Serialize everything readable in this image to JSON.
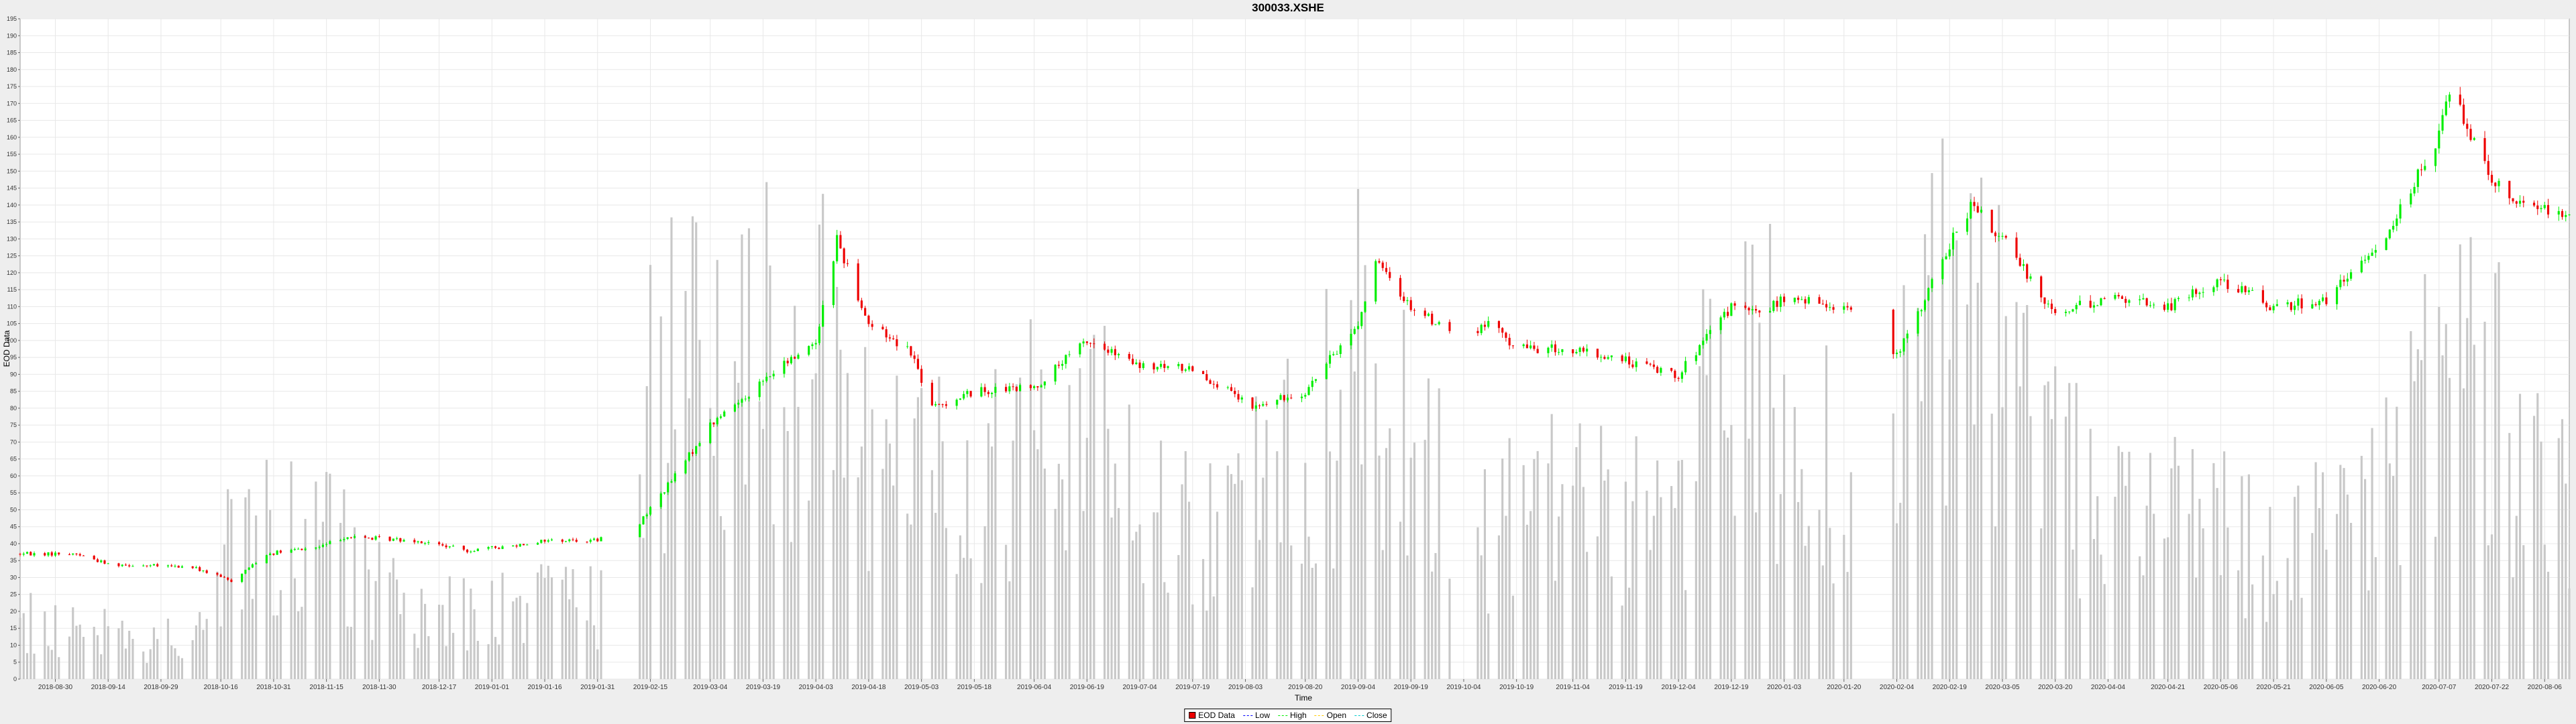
{
  "chart_data": {
    "type": "candlestick",
    "title": "300033.XSHE",
    "xlabel": "Time",
    "ylabel": "EOD Data",
    "ylim": [
      0,
      195
    ],
    "y_ticks": [
      0,
      5,
      10,
      15,
      20,
      25,
      30,
      35,
      40,
      45,
      50,
      55,
      60,
      65,
      70,
      75,
      80,
      85,
      90,
      95,
      100,
      105,
      110,
      115,
      120,
      125,
      130,
      135,
      140,
      145,
      150,
      155,
      160,
      165,
      170,
      175,
      180,
      185,
      190,
      195
    ],
    "x_range": [
      "2018-08-20",
      "2020-08-13"
    ],
    "x_ticks": [
      "2018-08-30",
      "2018-09-14",
      "2018-09-29",
      "2018-10-16",
      "2018-10-31",
      "2018-11-15",
      "2018-11-30",
      "2018-12-17",
      "2019-01-01",
      "2019-01-16",
      "2019-01-31",
      "2019-02-15",
      "2019-03-04",
      "2019-03-19",
      "2019-04-03",
      "2019-04-18",
      "2019-05-03",
      "2019-05-18",
      "2019-06-04",
      "2019-06-19",
      "2019-07-04",
      "2019-07-19",
      "2019-08-03",
      "2019-08-20",
      "2019-09-04",
      "2019-09-19",
      "2019-10-04",
      "2019-10-19",
      "2019-11-04",
      "2019-11-19",
      "2019-12-04",
      "2019-12-19",
      "2020-01-03",
      "2020-01-20",
      "2020-02-04",
      "2020-02-19",
      "2020-03-05",
      "2020-03-20",
      "2020-04-04",
      "2020-04-21",
      "2020-05-06",
      "2020-05-21",
      "2020-06-05",
      "2020-06-20",
      "2020-07-07",
      "2020-07-22",
      "2020-08-06"
    ],
    "price_anchors": [
      [
        "2018-08-20",
        37
      ],
      [
        "2018-09-05",
        37
      ],
      [
        "2018-09-14",
        34
      ],
      [
        "2018-10-08",
        33
      ],
      [
        "2018-10-19",
        29
      ],
      [
        "2018-10-29",
        37
      ],
      [
        "2018-11-13",
        39
      ],
      [
        "2018-11-20",
        42
      ],
      [
        "2018-12-10",
        41
      ],
      [
        "2018-12-25",
        38
      ],
      [
        "2019-01-04",
        39
      ],
      [
        "2019-01-16",
        41
      ],
      [
        "2019-01-31",
        41
      ],
      [
        "2019-02-11",
        45
      ],
      [
        "2019-02-22",
        60
      ],
      [
        "2019-03-04",
        75
      ],
      [
        "2019-03-19",
        88
      ],
      [
        "2019-04-03",
        100
      ],
      [
        "2019-04-09",
        130
      ],
      [
        "2019-04-18",
        105
      ],
      [
        "2019-04-30",
        97
      ],
      [
        "2019-05-06",
        80
      ],
      [
        "2019-05-18",
        85
      ],
      [
        "2019-06-04",
        86
      ],
      [
        "2019-06-19",
        100
      ],
      [
        "2019-07-04",
        92
      ],
      [
        "2019-07-19",
        92
      ],
      [
        "2019-08-05",
        80
      ],
      [
        "2019-08-20",
        85
      ],
      [
        "2019-09-04",
        105
      ],
      [
        "2019-09-09",
        123
      ],
      [
        "2019-09-19",
        110
      ],
      [
        "2019-10-04",
        100
      ],
      [
        "2019-10-11",
        105
      ],
      [
        "2019-10-19",
        98
      ],
      [
        "2019-11-04",
        97
      ],
      [
        "2019-11-19",
        94
      ],
      [
        "2019-12-04",
        90
      ],
      [
        "2019-12-19",
        110
      ],
      [
        "2019-12-26",
        108
      ],
      [
        "2020-01-03",
        112
      ],
      [
        "2020-01-21",
        110
      ],
      [
        "2020-02-04",
        95
      ],
      [
        "2020-02-19",
        128
      ],
      [
        "2020-02-25",
        140
      ],
      [
        "2020-03-05",
        130
      ],
      [
        "2020-03-20",
        108
      ],
      [
        "2020-04-04",
        113
      ],
      [
        "2020-04-21",
        110
      ],
      [
        "2020-05-06",
        118
      ],
      [
        "2020-05-21",
        110
      ],
      [
        "2020-06-05",
        112
      ],
      [
        "2020-06-20",
        128
      ],
      [
        "2020-07-07",
        160
      ],
      [
        "2020-07-10",
        175
      ],
      [
        "2020-07-22",
        148
      ],
      [
        "2020-07-31",
        140
      ],
      [
        "2020-08-13",
        138
      ]
    ],
    "volume_anchors": [
      [
        "2018-08-20",
        18
      ],
      [
        "2018-10-08",
        12
      ],
      [
        "2018-10-19",
        45
      ],
      [
        "2018-11-15",
        45
      ],
      [
        "2018-12-10",
        20
      ],
      [
        "2019-01-31",
        25
      ],
      [
        "2019-02-15",
        90
      ],
      [
        "2019-03-04",
        125
      ],
      [
        "2019-04-09",
        110
      ],
      [
        "2019-04-30",
        60
      ],
      [
        "2019-05-18",
        70
      ],
      [
        "2019-06-19",
        90
      ],
      [
        "2019-07-19",
        45
      ],
      [
        "2019-08-20",
        70
      ],
      [
        "2019-09-09",
        110
      ],
      [
        "2019-10-04",
        55
      ],
      [
        "2019-11-04",
        55
      ],
      [
        "2019-12-04",
        55
      ],
      [
        "2019-12-19",
        110
      ],
      [
        "2020-01-21",
        60
      ],
      [
        "2020-02-19",
        120
      ],
      [
        "2020-03-20",
        70
      ],
      [
        "2020-04-21",
        50
      ],
      [
        "2020-05-21",
        45
      ],
      [
        "2020-06-20",
        60
      ],
      [
        "2020-07-10",
        110
      ],
      [
        "2020-08-13",
        50
      ]
    ],
    "legend": {
      "placement": "bottom-center",
      "items": [
        "EOD Data",
        "Low",
        "High",
        "Open",
        "Close"
      ]
    },
    "colors": {
      "up": "#00ee00",
      "down": "#ee0000",
      "volume": "#c8c8c8",
      "grid": "#e8e8e8",
      "high": "#00ee00",
      "low": "#0000ff",
      "open": "#ffcc00",
      "close": "#00cccc"
    },
    "grid": true
  }
}
